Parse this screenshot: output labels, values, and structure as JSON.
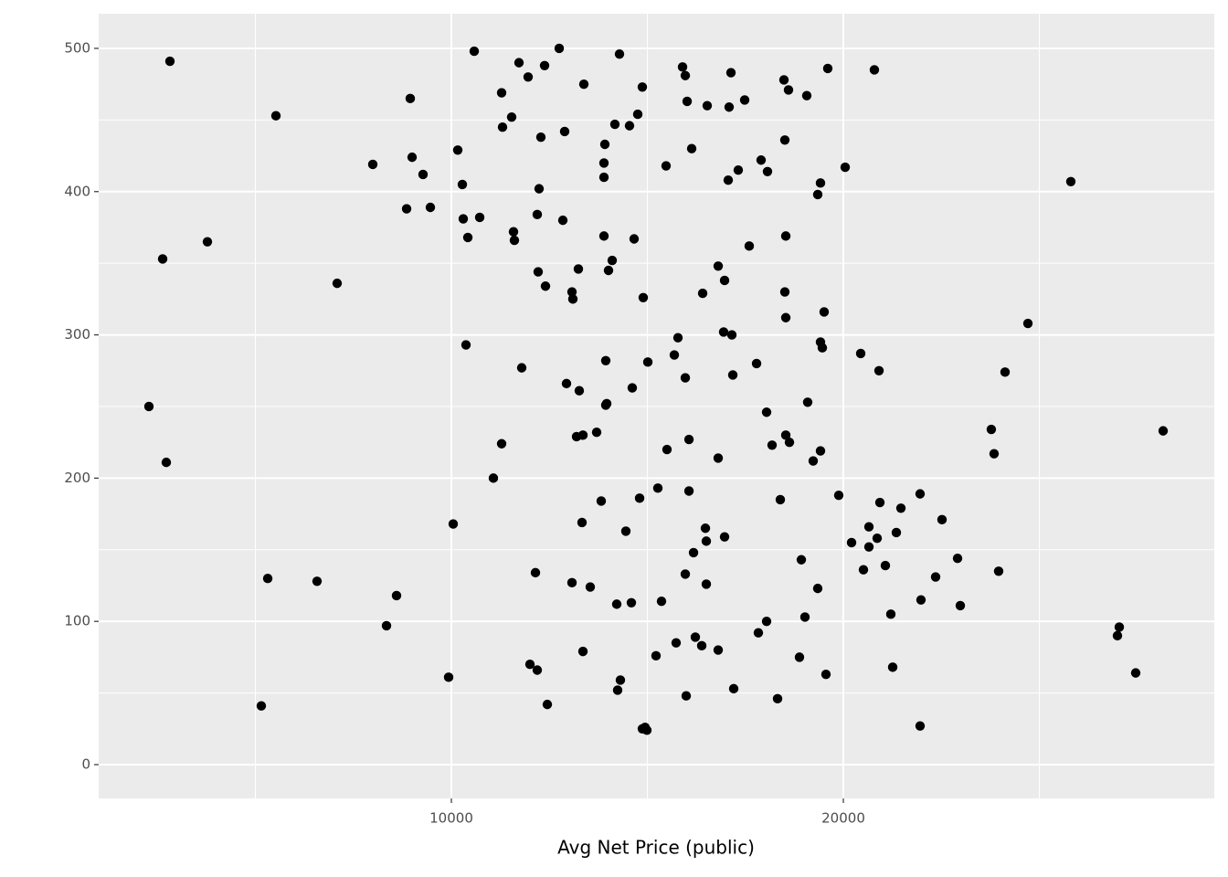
{
  "chart_data": {
    "type": "scatter",
    "x_label": "Avg Net Price (public)",
    "xlim": [
      1002,
      29464
    ],
    "ylim": [
      -23.6,
      524.2
    ],
    "xticks": [
      10000,
      20000
    ],
    "yticks": [
      0,
      100,
      200,
      300,
      400,
      500
    ],
    "grid": true,
    "color": "#000000",
    "x": [
      2820,
      5524,
      2634,
      3776,
      2284,
      2727,
      7086,
      5315,
      6573,
      5151,
      7995,
      8951,
      8998,
      9277,
      8858,
      9464,
      8601,
      8345,
      9930,
      10047,
      10163,
      10280,
      10303,
      10420,
      10723,
      10583,
      10373,
      11072,
      11282,
      11305,
      11538,
      11725,
      11958,
      12378,
      12751,
      12284,
      12890,
      12238,
      12191,
      12844,
      11585,
      11608,
      12214,
      12401,
      13077,
      13100,
      13240,
      11795,
      11282,
      12937,
      13263,
      13194,
      13357,
      13706,
      13380,
      14289,
      14172,
      14545,
      14755,
      14872,
      13916,
      13893,
      13893,
      13893,
      14103,
      14009,
      14662,
      14895,
      13939,
      13963,
      13939,
      14615,
      15012,
      13823,
      14802,
      15268,
      14452,
      13333,
      12145,
      13077,
      13543,
      14219,
      14592,
      15361,
      12005,
      12191,
      13357,
      14312,
      14242,
      12448,
      14872,
      14988,
      14942,
      15221,
      15734,
      15991,
      16224,
      16387,
      16807,
      17203,
      15968,
      16178,
      16504,
      16504,
      16481,
      16970,
      16062,
      15501,
      16062,
      16807,
      15781,
      15688,
      15968,
      16946,
      17156,
      17180,
      16411,
      16807,
      16970,
      15478,
      16131,
      15898,
      15968,
      16015,
      16527,
      17133,
      17086,
      17483,
      17319,
      17063,
      17902,
      18065,
      17599,
      18485,
      18601,
      18508,
      19067,
      19603,
      20792,
      20047,
      19417,
      19347,
      18532,
      18508,
      18532,
      19510,
      19417,
      19464,
      20443,
      20910,
      17786,
      18042,
      19090,
      18532,
      18625,
      18182,
      19417,
      19231,
      18392,
      19883,
      20933,
      21469,
      21958,
      22517,
      20653,
      20210,
      20653,
      20863,
      21352,
      18928,
      20513,
      21072,
      22914,
      22354,
      23962,
      19347,
      21981,
      22984,
      21212,
      19021,
      18042,
      17832,
      18881,
      21259,
      19557,
      18322,
      21958,
      23775,
      23846,
      24126,
      24709,
      25804,
      27040,
      26993,
      27459,
      28159
    ],
    "y": [
      491,
      453,
      353,
      365,
      250,
      211,
      336,
      130,
      128,
      41,
      419,
      465,
      424,
      412,
      388,
      389,
      118,
      97,
      61,
      168,
      429,
      405,
      381,
      368,
      382,
      498,
      293,
      200,
      469,
      445,
      452,
      490,
      480,
      488,
      500,
      438,
      442,
      402,
      384,
      380,
      372,
      366,
      344,
      334,
      330,
      325,
      346,
      277,
      224,
      266,
      261,
      229,
      230,
      232,
      475,
      496,
      447,
      446,
      454,
      473,
      433,
      420,
      410,
      369,
      352,
      345,
      367,
      326,
      282,
      252,
      251,
      263,
      281,
      184,
      186,
      193,
      163,
      169,
      134,
      127,
      124,
      112,
      113,
      114,
      70,
      66,
      79,
      59,
      52,
      42,
      25,
      24,
      26,
      76,
      85,
      48,
      89,
      83,
      80,
      53,
      133,
      148,
      126,
      156,
      165,
      159,
      191,
      220,
      227,
      214,
      298,
      286,
      270,
      302,
      300,
      272,
      329,
      348,
      338,
      418,
      430,
      487,
      481,
      463,
      460,
      483,
      459,
      464,
      415,
      408,
      422,
      414,
      362,
      478,
      471,
      436,
      467,
      486,
      485,
      417,
      406,
      398,
      369,
      330,
      312,
      316,
      295,
      291,
      287,
      275,
      280,
      246,
      253,
      230,
      225,
      223,
      219,
      212,
      185,
      188,
      183,
      179,
      189,
      171,
      166,
      155,
      152,
      158,
      162,
      143,
      136,
      139,
      144,
      131,
      135,
      123,
      115,
      111,
      105,
      103,
      100,
      92,
      75,
      68,
      63,
      46,
      27,
      234,
      217,
      274,
      308,
      407,
      96,
      90,
      64,
      233
    ]
  }
}
